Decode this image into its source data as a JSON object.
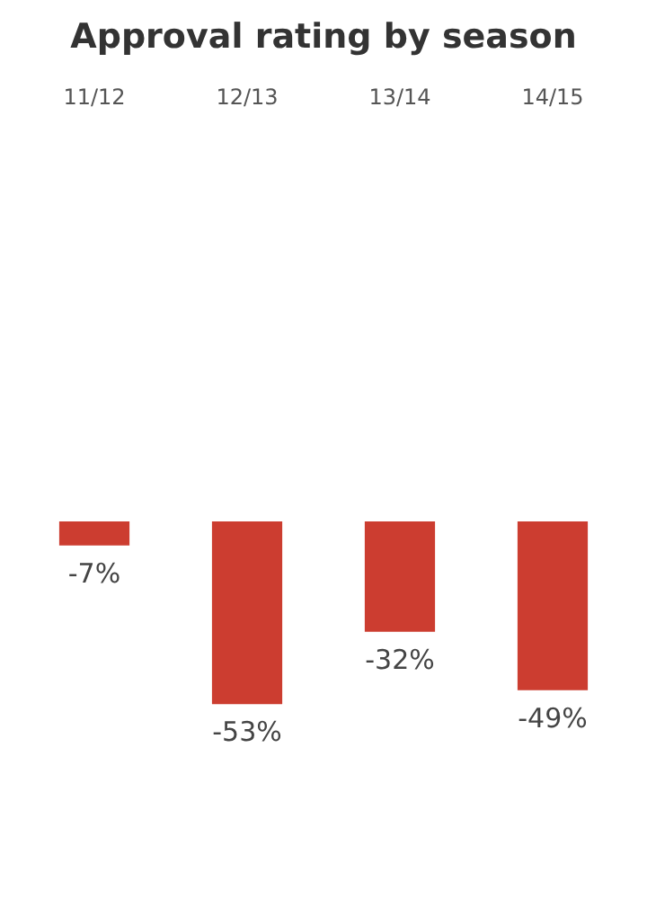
{
  "chart_data": {
    "type": "bar",
    "title": "Approval rating by season",
    "categories": [
      "11/12",
      "12/13",
      "13/14",
      "14/15"
    ],
    "values": [
      -7,
      -53,
      -32,
      -49
    ],
    "color": "#cc3d30",
    "value_labels": [
      "-7%",
      "-53%",
      "-32%",
      "-49%"
    ]
  }
}
